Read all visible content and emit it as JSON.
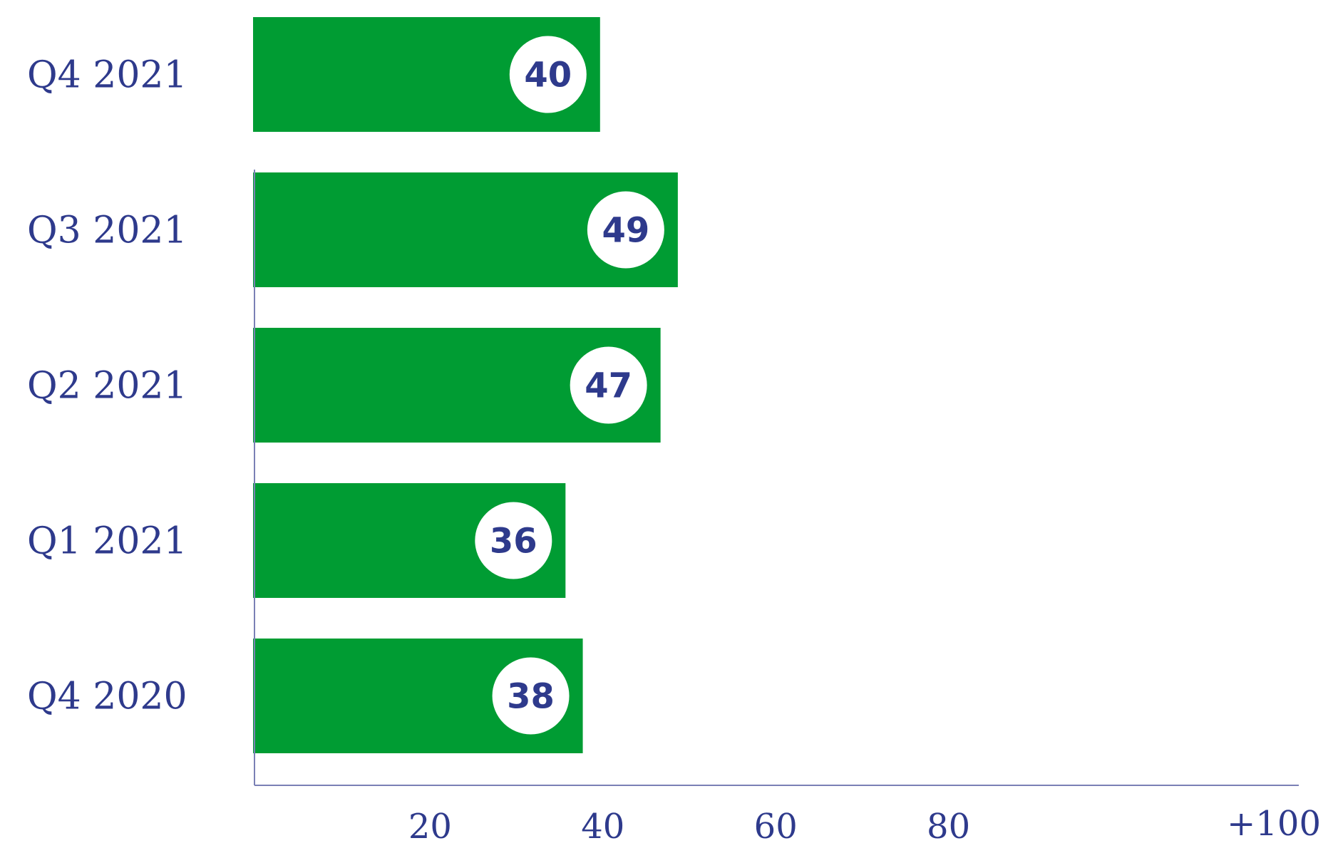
{
  "chart_data": {
    "type": "bar",
    "orientation": "horizontal",
    "categories": [
      "Q4 2021",
      "Q3 2021",
      "Q2 2021",
      "Q1 2021",
      "Q4 2020"
    ],
    "values": [
      40,
      49,
      47,
      36,
      38
    ],
    "xlim": [
      0,
      100
    ],
    "ticks": [
      20,
      40,
      60,
      80,
      100
    ],
    "tick_labels": [
      "20",
      "40",
      "60",
      "80",
      "+100"
    ],
    "title": "",
    "xlabel": "",
    "ylabel": "",
    "grid": false,
    "colors": {
      "bar": "#009c33",
      "text": "#2e3a8c",
      "axis": "#7a80b5",
      "label_bubble": "#ffffff"
    }
  }
}
